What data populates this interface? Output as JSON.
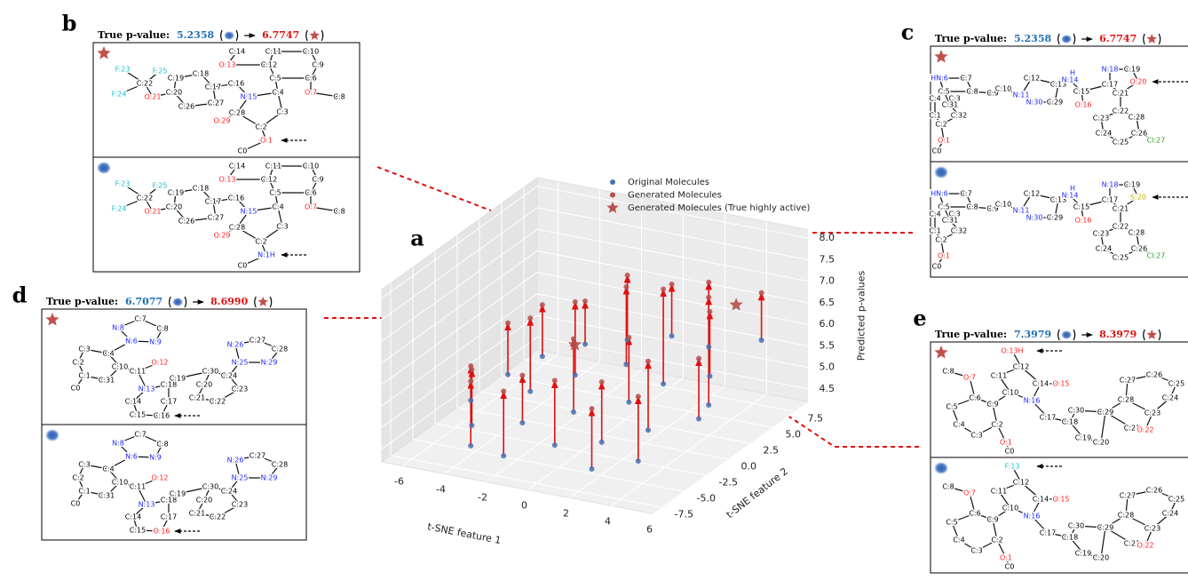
{
  "chart_data": {
    "type": "scatter3d",
    "title": "a",
    "xlabel": "t-SNE feature 1",
    "ylabel": "t-SNE feature 2",
    "zlabel": "Predicted p-values",
    "xlim": [
      -7,
      6
    ],
    "ylim": [
      -8.5,
      9
    ],
    "zlim": [
      4.2,
      8.2
    ],
    "xticks": [
      -6,
      -4,
      -2,
      0,
      2,
      4,
      6
    ],
    "yticks": [
      {
        "value": -7.5,
        "label": "-7.5"
      },
      {
        "value": -5,
        "label": "-5.0"
      },
      {
        "value": -2.5,
        "label": "-2.5"
      },
      {
        "value": 0,
        "label": "0.0"
      },
      {
        "value": 2.5,
        "label": "2.5"
      },
      {
        "value": 5,
        "label": "5.0"
      },
      {
        "value": 7.5,
        "label": "7.5"
      }
    ],
    "zticks": [
      4.5,
      {
        "value": 5,
        "label": "5.0"
      },
      5.5,
      {
        "value": 6,
        "label": "6.0"
      },
      6.5,
      {
        "value": 7,
        "label": "7.0"
      },
      7.5,
      {
        "value": 8,
        "label": "8.0"
      }
    ],
    "grid": true,
    "series": [
      {
        "name": "Original Molecules",
        "color": "#4a6fb0",
        "x": [
          -5.5,
          -5.0,
          -4.6,
          -4.2,
          -3.8,
          -3.5,
          -3.0,
          -2.6,
          -2.2,
          -1.8,
          -1.4,
          -1.0,
          -0.6,
          -0.2,
          0.3,
          0.8,
          1.2,
          1.6,
          2.0,
          2.5,
          3.0,
          3.4,
          3.8,
          4.2,
          4.6,
          5.0
        ],
        "y": [
          -2,
          1,
          -4,
          3,
          -6,
          0,
          5,
          -3,
          2,
          -7,
          6,
          -1,
          4,
          -5,
          7,
          1,
          -3,
          3,
          -6,
          6,
          -2,
          4,
          -5,
          2,
          7,
          -1
        ],
        "z": [
          4.8,
          5.0,
          4.6,
          5.2,
          4.5,
          4.9,
          5.3,
          4.7,
          5.1,
          4.6,
          5.4,
          4.8,
          5.2,
          4.7,
          5.5,
          4.9,
          4.6,
          5.1,
          4.5,
          5.6,
          4.9,
          5.3,
          4.7,
          5.0,
          5.8,
          5.2
        ]
      },
      {
        "name": "Generated Molecules",
        "color": "#b5504e",
        "x": [
          -5.5,
          -5.0,
          -4.6,
          -4.2,
          -3.8,
          -3.5,
          -3.0,
          -2.6,
          -2.2,
          -1.8,
          -1.4,
          -1.0,
          -0.6,
          -0.2,
          0.3,
          0.8,
          1.2,
          1.6,
          2.0,
          2.5,
          3.0,
          3.4,
          3.8,
          4.2,
          4.6,
          5.0
        ],
        "y": [
          -2,
          1,
          -4,
          3,
          -6,
          0,
          5,
          -3,
          2,
          -7,
          6,
          -1,
          4,
          -5,
          7,
          1,
          -3,
          3,
          -6,
          6,
          -2,
          4,
          -5,
          2,
          7,
          -1
        ],
        "z": [
          5.6,
          6.2,
          5.9,
          6.4,
          6.0,
          6.6,
          6.3,
          5.8,
          6.8,
          6.1,
          6.9,
          6.5,
          7.0,
          6.2,
          6.7,
          6.4,
          6.0,
          7.3,
          5.9,
          7.1,
          6.5,
          6.8,
          6.2,
          7.5,
          6.9,
          6.6
        ]
      },
      {
        "name": "Generated Molecules (True highly active)",
        "color": "#b5504e",
        "x": [
          -2.0,
          3.6
        ],
        "y": [
          1.5,
          6.5
        ],
        "z": [
          5.9,
          6.6
        ]
      }
    ]
  },
  "panels": [
    {
      "label": "b",
      "header": {
        "text": "True p-value:",
        "original": "5.2358",
        "generated": "6.7747"
      },
      "generated_molecule": [
        "C:14",
        "O:13",
        "C:11",
        "C:10",
        "C:12",
        "C:9",
        "C:5",
        "C:6",
        "C:4",
        "O:7",
        "C:8",
        "C:19",
        "C:18",
        "F:23",
        "F:25",
        "C:22",
        "C:20",
        "C:17",
        "C:16",
        "F:24",
        "O:21",
        "C:26",
        "C:27",
        "N:15",
        "C:28",
        "C:3",
        "O:29",
        "C:2",
        "O:1",
        "C0"
      ],
      "original_molecule": [
        "C:14",
        "O:13",
        "C:11",
        "C:10",
        "C:12",
        "C:9",
        "C:5",
        "C:6",
        "C:4",
        "O:7",
        "C:8",
        "C:19",
        "C:18",
        "F:23",
        "F:25",
        "C:22",
        "C:20",
        "C:17",
        "C:16",
        "F:24",
        "O:21",
        "C:26",
        "C:27",
        "N:15",
        "C:28",
        "C:3",
        "O:29",
        "C:2",
        "N:1H",
        "C0"
      ]
    },
    {
      "label": "c",
      "header": {
        "text": "True p-value:",
        "original": "5.2358",
        "generated": "6.7747"
      },
      "generated_molecule": [
        "HN:6",
        "C:7",
        "C:5",
        "C:8",
        "C:4",
        "C:3",
        "C:31",
        "C:32",
        "C:1",
        "C:2",
        "O:1",
        "C0",
        "C:9",
        "C:10",
        "N:11",
        "C:12",
        "C:13",
        "H",
        "N:14",
        "C:15",
        "O:16",
        "C:17",
        "N:18",
        "C:19",
        "O:20",
        "C:21",
        "N:30",
        "C:29",
        "C:22",
        "C:23",
        "C:28",
        "C:24",
        "C:26",
        "C:25",
        "Cl:27"
      ],
      "original_molecule": [
        "HN:6",
        "C:7",
        "C:5",
        "C:8",
        "C:4",
        "C:3",
        "C:31",
        "C:32",
        "C:1",
        "C:2",
        "O:1",
        "C0",
        "C:9",
        "C:10",
        "N:11",
        "C:12",
        "C:13",
        "H",
        "N:14",
        "C:15",
        "O:16",
        "C:17",
        "N:18",
        "C:19",
        "S:20",
        "C:21",
        "N:30",
        "C:29",
        "C:22",
        "C:23",
        "C:28",
        "C:24",
        "C:26",
        "C:25",
        "Cl:27"
      ]
    },
    {
      "label": "d",
      "header": {
        "text": "True p-value:",
        "original": "6.7077",
        "generated": "8.6990"
      },
      "generated_molecule": [
        "N:8",
        "C:7",
        "C:8",
        "N:6",
        "N:9",
        "C:3",
        "C:4",
        "C:2",
        "C:10",
        "O:12",
        "C:1",
        "C:31",
        "C:11",
        "C0",
        "N:13",
        "C:18",
        "C:19",
        "C:30",
        "C:27",
        "C:28",
        "N:26",
        "N:25",
        "N:29",
        "C:24",
        "C:20",
        "C:23",
        "C:21",
        "C:22",
        "C:14",
        "C:17",
        "C:15",
        "C:16"
      ],
      "original_molecule": [
        "N:8",
        "C:7",
        "C:8",
        "N:6",
        "N:9",
        "C:3",
        "C:4",
        "C:2",
        "C:10",
        "O:12",
        "C:1",
        "C:31",
        "C:11",
        "C0",
        "N:13",
        "C:18",
        "C:19",
        "C:30",
        "C:27",
        "C:28",
        "N:26",
        "N:25",
        "N:29",
        "C:24",
        "C:20",
        "C:23",
        "C:21",
        "C:22",
        "C:14",
        "C:17",
        "C:15",
        "O:16"
      ]
    },
    {
      "label": "e",
      "header": {
        "text": "True p-value:",
        "original": "7.3979",
        "generated": "8.3979"
      },
      "generated_molecule": [
        "O:13H",
        "C:8",
        "O:7",
        "C:11",
        "C:12",
        "C:27",
        "C:26",
        "C:25",
        "C:6",
        "C:10",
        "C:14",
        "O:15",
        "C:28",
        "C:24",
        "C:5",
        "C:9",
        "N:16",
        "C:30",
        "C:29",
        "C:23",
        "C:4",
        "C:2",
        "C:17",
        "C:18",
        "C:21",
        "O:22",
        "C:3",
        "O:1",
        "C:19",
        "C:20",
        "C0"
      ],
      "original_molecule": [
        "F:13",
        "C:8",
        "O:7",
        "C:11",
        "C:12",
        "C:27",
        "C:26",
        "C:25",
        "C:6",
        "C:10",
        "C:14",
        "O:15",
        "C:28",
        "C:24",
        "C:5",
        "C:9",
        "N:16",
        "C:30",
        "C:29",
        "C:23",
        "C:4",
        "C:2",
        "C:17",
        "C:18",
        "C:21",
        "O:22",
        "C:3",
        "O:1",
        "C:19",
        "C:20",
        "C0"
      ]
    }
  ]
}
